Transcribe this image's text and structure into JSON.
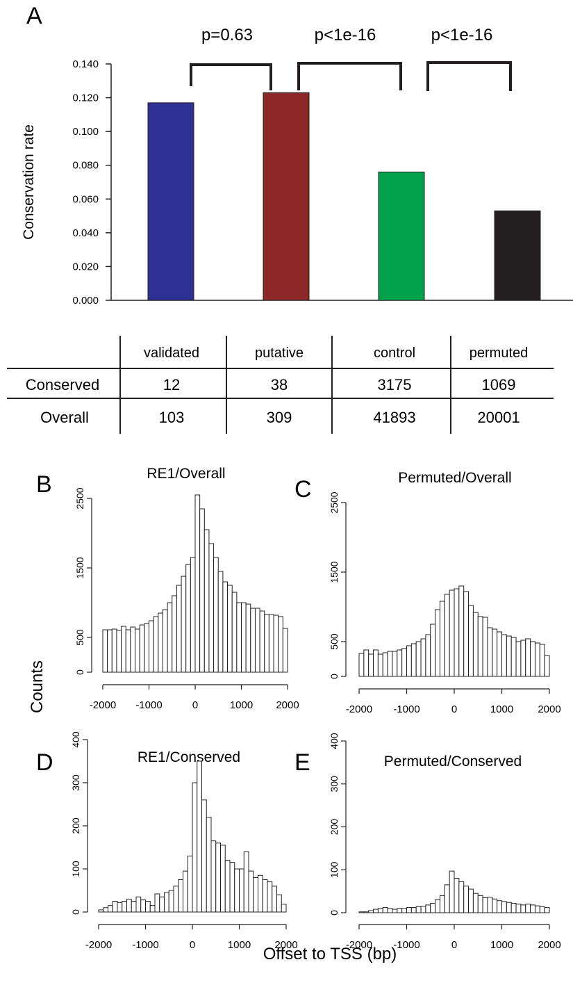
{
  "panel_letters": [
    "A",
    "B",
    "C",
    "D",
    "E"
  ],
  "panel_a": {
    "ylabel": "Conservation rate",
    "pvalues": [
      "p=0.63",
      "p<1e-16",
      "p<1e-16"
    ],
    "table": {
      "columns": [
        "validated",
        "putative",
        "control",
        "permuted"
      ],
      "rows": [
        {
          "label": "Conserved",
          "values": [
            "12",
            "38",
            "3175",
            "1069"
          ]
        },
        {
          "label": "Overall",
          "values": [
            "103",
            "309",
            "41893",
            "20001"
          ]
        }
      ]
    }
  },
  "shared": {
    "ylabel": "Counts",
    "xlabel": "Offset to TSS (bp)"
  },
  "chart_data": [
    {
      "type": "bar",
      "panel": "A",
      "categories": [
        "validated",
        "putative",
        "control",
        "permuted"
      ],
      "values": [
        0.117,
        0.123,
        0.076,
        0.053
      ],
      "colors": [
        "#2e3192",
        "#8b2726",
        "#00a14b",
        "#231f20"
      ],
      "ylabel": "Conservation rate",
      "ylim": [
        0,
        0.14
      ],
      "yticks": [
        "0.000",
        "0.020",
        "0.040",
        "0.060",
        "0.080",
        "0.100",
        "0.120",
        "0.140"
      ]
    },
    {
      "type": "histogram",
      "panel": "B",
      "title": "RE1/Overall",
      "bin_width": 100,
      "xlim": [
        -2000,
        2000
      ],
      "xticks": [
        "-2000",
        "-1000",
        "0",
        "1000",
        "2000"
      ],
      "ylim": [
        0,
        2500
      ],
      "yticks": [
        "0",
        "500",
        "1500",
        "2500"
      ],
      "values": [
        610,
        610,
        620,
        600,
        660,
        610,
        650,
        620,
        680,
        700,
        740,
        800,
        850,
        900,
        1000,
        1100,
        1250,
        1380,
        1550,
        1650,
        2550,
        2350,
        2050,
        1850,
        1650,
        1450,
        1300,
        1250,
        1150,
        1000,
        1000,
        980,
        920,
        920,
        880,
        830,
        830,
        820,
        800,
        630
      ]
    },
    {
      "type": "histogram",
      "panel": "C",
      "title": "Permuted/Overall",
      "bin_width": 100,
      "xlim": [
        -2000,
        2000
      ],
      "xticks": [
        "-2000",
        "-1000",
        "0",
        "1000",
        "2000"
      ],
      "ylim": [
        0,
        2500
      ],
      "yticks": [
        "0",
        "500",
        "1500",
        "2500"
      ],
      "values": [
        330,
        380,
        320,
        380,
        320,
        340,
        360,
        360,
        380,
        400,
        440,
        470,
        500,
        540,
        600,
        750,
        960,
        1080,
        1180,
        1240,
        1260,
        1300,
        1220,
        1020,
        920,
        860,
        850,
        700,
        680,
        640,
        600,
        580,
        560,
        500,
        520,
        540,
        500,
        480,
        460,
        300
      ]
    },
    {
      "type": "histogram",
      "panel": "D",
      "title": "RE1/Conserved",
      "bin_width": 100,
      "xlim": [
        -2000,
        2000
      ],
      "xticks": [
        "-2000",
        "-1000",
        "0",
        "1000",
        "2000"
      ],
      "ylim": [
        0,
        400
      ],
      "yticks": [
        "0",
        "100",
        "200",
        "300",
        "400"
      ],
      "values": [
        5,
        10,
        15,
        25,
        22,
        25,
        30,
        25,
        35,
        28,
        25,
        15,
        42,
        35,
        45,
        50,
        60,
        75,
        95,
        130,
        300,
        350,
        260,
        220,
        165,
        160,
        155,
        120,
        115,
        100,
        100,
        140,
        95,
        80,
        85,
        75,
        70,
        60,
        40,
        18
      ]
    },
    {
      "type": "histogram",
      "panel": "E",
      "title": "Permuted/Conserved",
      "bin_width": 100,
      "xlim": [
        -2000,
        2000
      ],
      "xticks": [
        "-2000",
        "-1000",
        "0",
        "1000",
        "2000"
      ],
      "ylim": [
        0,
        400
      ],
      "yticks": [
        "0",
        "100",
        "200",
        "300",
        "400"
      ],
      "values": [
        2,
        2,
        5,
        8,
        10,
        12,
        10,
        8,
        10,
        10,
        12,
        12,
        14,
        15,
        18,
        22,
        30,
        40,
        65,
        97,
        80,
        72,
        62,
        55,
        45,
        40,
        35,
        36,
        32,
        28,
        26,
        24,
        22,
        20,
        18,
        20,
        18,
        16,
        14,
        12
      ]
    }
  ]
}
